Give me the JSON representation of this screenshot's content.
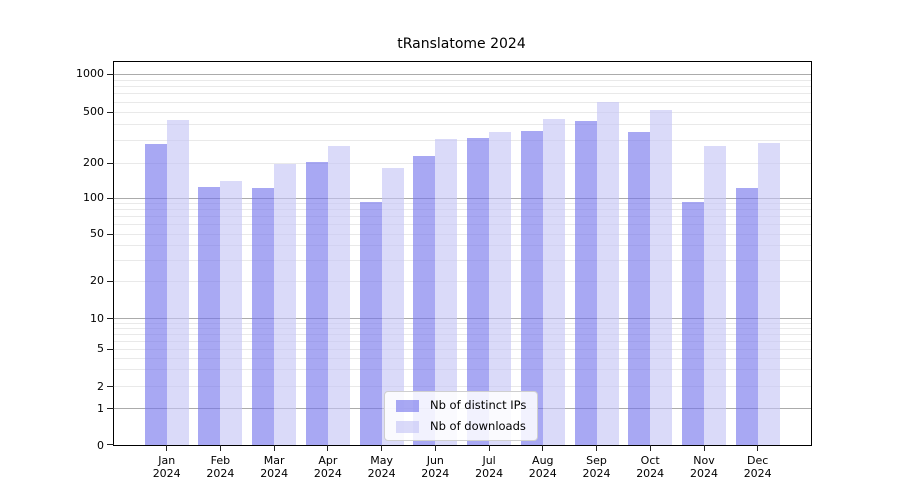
{
  "title": "tRanslatome 2024",
  "chart_data": {
    "type": "bar",
    "title": "tRanslatome 2024",
    "categories": [
      {
        "month": "Jan",
        "year": "2024"
      },
      {
        "month": "Feb",
        "year": "2024"
      },
      {
        "month": "Mar",
        "year": "2024"
      },
      {
        "month": "Apr",
        "year": "2024"
      },
      {
        "month": "May",
        "year": "2024"
      },
      {
        "month": "Jun",
        "year": "2024"
      },
      {
        "month": "Jul",
        "year": "2024"
      },
      {
        "month": "Aug",
        "year": "2024"
      },
      {
        "month": "Sep",
        "year": "2024"
      },
      {
        "month": "Oct",
        "year": "2024"
      },
      {
        "month": "Nov",
        "year": "2024"
      },
      {
        "month": "Dec",
        "year": "2024"
      }
    ],
    "series": [
      {
        "name": "Nb of distinct IPs",
        "color": "#a6a6f2",
        "fill": "rgba(115,115,235,0.62)",
        "values": [
          280,
          123,
          122,
          203,
          93,
          227,
          310,
          355,
          420,
          350,
          92,
          121
        ]
      },
      {
        "name": "Nb of downloads",
        "color": "#dadaf9",
        "fill": "rgba(196,196,245,0.62)",
        "values": [
          435,
          138,
          196,
          268,
          180,
          308,
          345,
          440,
          600,
          515,
          270,
          287
        ]
      }
    ],
    "yscale": "symlog",
    "yticks": [
      1000,
      500,
      200,
      100,
      50,
      20,
      10,
      5,
      2,
      1,
      0
    ],
    "ylim": [
      0,
      1100
    ],
    "xlabel": "",
    "ylabel": "",
    "grid": true,
    "legend_position": "lower center",
    "axis_color": "#000000",
    "major_grid_color": "#ababab",
    "minor_grid_color": "#e9e9e9"
  }
}
